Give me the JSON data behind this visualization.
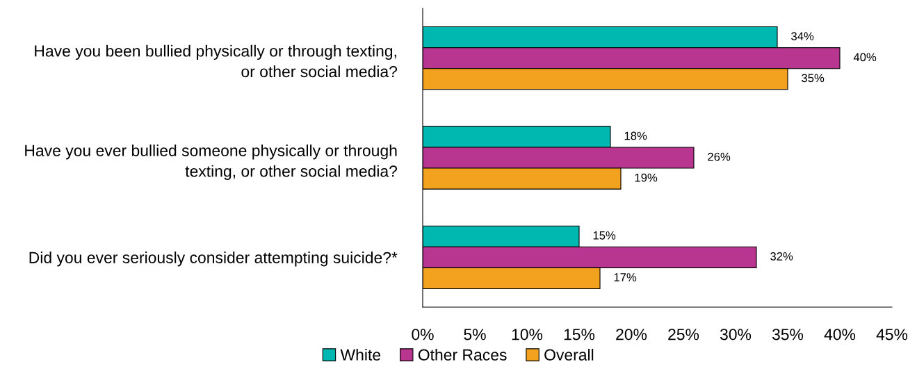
{
  "chart_data": {
    "type": "bar",
    "orientation": "horizontal",
    "categories": [
      "Have you been bullied physically or through texting,\nor other social media?",
      "Have you ever bullied someone physically or through\ntexting, or other social media?",
      "Did you ever seriously consider attempting suicide?*"
    ],
    "series": [
      {
        "name": "White",
        "color": "#00b8b0",
        "values": [
          34,
          18,
          15
        ],
        "value_labels": [
          "34%",
          "18%",
          "15%"
        ]
      },
      {
        "name": "Other Races",
        "color": "#b8368f",
        "values": [
          40,
          26,
          32
        ],
        "value_labels": [
          "40%",
          "26%",
          "32%"
        ]
      },
      {
        "name": "Overall",
        "color": "#f3a21f",
        "values": [
          35,
          19,
          17
        ],
        "value_labels": [
          "35%",
          "19%",
          "17%"
        ]
      }
    ],
    "xlim": [
      0,
      45
    ],
    "xticks": [
      {
        "value": 0,
        "label": "0%"
      },
      {
        "value": 5,
        "label": "5%"
      },
      {
        "value": 10,
        "label": "10%"
      },
      {
        "value": 15,
        "label": "15%"
      },
      {
        "value": 20,
        "label": "20%"
      },
      {
        "value": 25,
        "label": "25%"
      },
      {
        "value": 30,
        "label": "30%"
      },
      {
        "value": 35,
        "label": "35%"
      },
      {
        "value": 40,
        "label": "40%"
      },
      {
        "value": 45,
        "label": "45%"
      }
    ],
    "grid": false,
    "legend": "bottom"
  }
}
